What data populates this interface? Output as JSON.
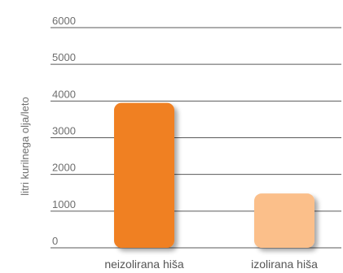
{
  "chart_data": {
    "type": "bar",
    "title": "",
    "xlabel": "",
    "ylabel": "litri kurilnega olja/leto",
    "categories": [
      "neizolirana hiša",
      "izolirana hiša"
    ],
    "values": [
      3950,
      1480
    ],
    "ylim": [
      0,
      6000
    ],
    "yticks": [
      0,
      1000,
      2000,
      3000,
      4000,
      5000,
      6000
    ],
    "grid": true,
    "legend": "none",
    "colors": [
      "#f08020",
      "#fbbf8a"
    ]
  }
}
